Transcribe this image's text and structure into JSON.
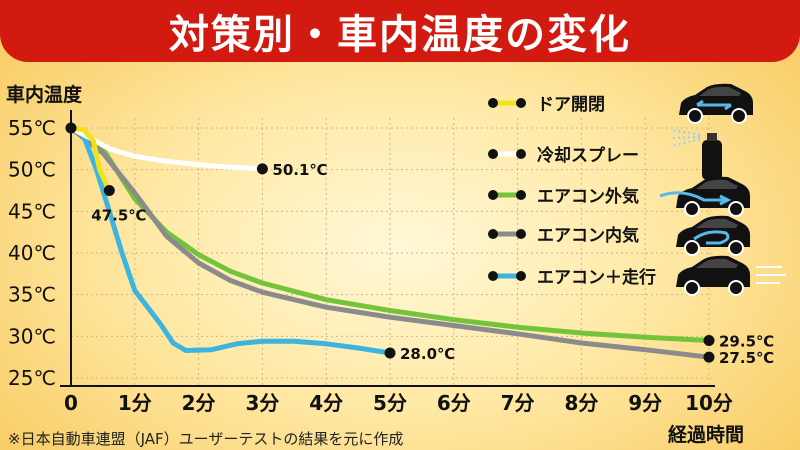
{
  "header": {
    "title": "対策別・車内温度の変化",
    "accent": "#d21a10"
  },
  "footnote": "※日本自動車連盟（JAF）ユーザーテストの結果を元に作成",
  "chart_data": {
    "type": "line",
    "title": "対策別・車内温度の変化",
    "ylabel": "車内温度",
    "xlabel": "経過時間",
    "ylim": [
      25,
      55
    ],
    "xlim": [
      0,
      10
    ],
    "grid": true,
    "legend_position": "right",
    "y_ticks": [
      {
        "v": 55,
        "label": "55℃"
      },
      {
        "v": 50,
        "label": "50℃"
      },
      {
        "v": 45,
        "label": "45℃"
      },
      {
        "v": 40,
        "label": "40℃"
      },
      {
        "v": 35,
        "label": "35℃"
      },
      {
        "v": 30,
        "label": "30℃"
      },
      {
        "v": 25,
        "label": "25℃"
      }
    ],
    "x_ticks": [
      {
        "v": 0,
        "label": "0"
      },
      {
        "v": 1,
        "label": "1分"
      },
      {
        "v": 2,
        "label": "2分"
      },
      {
        "v": 3,
        "label": "3分"
      },
      {
        "v": 4,
        "label": "4分"
      },
      {
        "v": 5,
        "label": "5分"
      },
      {
        "v": 6,
        "label": "6分"
      },
      {
        "v": 7,
        "label": "7分"
      },
      {
        "v": 8,
        "label": "8分"
      },
      {
        "v": 9,
        "label": "9分"
      },
      {
        "v": 10,
        "label": "10分"
      }
    ],
    "series": [
      {
        "name": "ドア開閉",
        "color": "#f2e21a",
        "icon": "car-fan-icon",
        "x": [
          0,
          0.2,
          0.35,
          0.45,
          0.6
        ],
        "y": [
          55,
          54.8,
          53.5,
          50,
          47.5
        ],
        "end_label": "47.5℃"
      },
      {
        "name": "冷却スプレー",
        "color": "#ffffff",
        "icon": "spray-can-icon",
        "x": [
          0,
          0.3,
          0.6,
          1,
          1.5,
          2,
          2.5,
          3
        ],
        "y": [
          55,
          53.8,
          52.5,
          51.6,
          51.0,
          50.6,
          50.3,
          50.1
        ],
        "end_label": "50.1℃"
      },
      {
        "name": "エアコン外気",
        "color": "#73c43a",
        "icon": "car-outside-air-icon",
        "x": [
          0,
          0.5,
          1,
          1.5,
          2,
          2.5,
          3,
          4,
          5,
          6,
          7,
          8,
          9,
          10
        ],
        "y": [
          55,
          52.5,
          46.5,
          42.5,
          39.8,
          37.8,
          36.4,
          34.4,
          33.1,
          32.0,
          31.1,
          30.4,
          29.9,
          29.5
        ],
        "end_label": "29.5℃"
      },
      {
        "name": "エアコン内気",
        "color": "#8b8b8b",
        "icon": "car-recirculation-icon",
        "x": [
          0,
          0.5,
          1,
          1.5,
          2,
          2.5,
          3,
          4,
          5,
          6,
          7,
          8,
          9,
          10
        ],
        "y": [
          55,
          52.0,
          47.2,
          42.0,
          38.8,
          36.7,
          35.3,
          33.5,
          32.3,
          31.3,
          30.3,
          29.2,
          28.4,
          27.5
        ],
        "end_label": "27.5℃"
      },
      {
        "name": "エアコン＋走行",
        "color": "#3cb4e0",
        "icon": "car-driving-icon",
        "x": [
          0,
          0.2,
          0.4,
          0.6,
          0.8,
          1.0,
          1.2,
          1.4,
          1.6,
          1.8,
          2.2,
          2.6,
          3.0,
          3.5,
          4.0,
          4.5,
          5.0
        ],
        "y": [
          55,
          54,
          50,
          45,
          40,
          35.5,
          33.5,
          31.5,
          29.2,
          28.3,
          28.4,
          29.1,
          29.4,
          29.4,
          29.1,
          28.6,
          28.0
        ],
        "end_label": "28.0℃"
      }
    ]
  }
}
